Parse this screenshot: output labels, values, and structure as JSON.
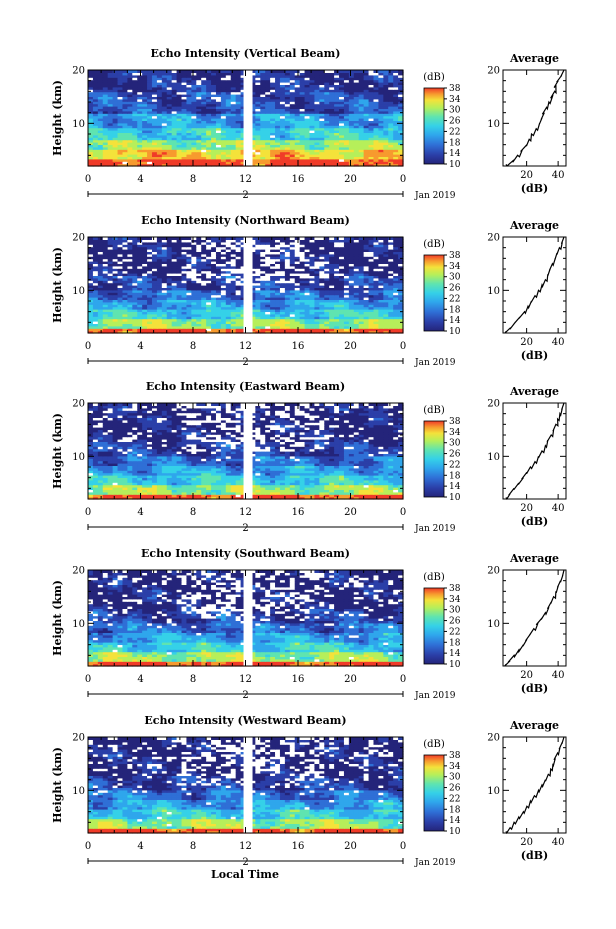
{
  "chart_data": {
    "type": "heatmap",
    "panels": [
      {
        "title": "Echo Intensity (Vertical Beam)",
        "profile": [
          [
            20,
            1.0
          ],
          [
            19,
            0.96
          ],
          [
            18,
            0.9
          ],
          [
            17,
            0.86
          ],
          [
            16,
            0.84
          ],
          [
            15,
            0.8
          ],
          [
            14,
            0.74
          ],
          [
            13,
            0.7
          ],
          [
            12,
            0.66
          ],
          [
            11,
            0.62
          ],
          [
            10,
            0.58
          ],
          [
            9,
            0.52
          ],
          [
            8,
            0.44
          ],
          [
            7,
            0.4
          ],
          [
            6,
            0.36
          ],
          [
            5,
            0.28
          ],
          [
            4,
            0.2
          ],
          [
            3,
            0.12
          ],
          [
            2.3,
            0.0
          ]
        ]
      },
      {
        "title": "Echo Intensity (Northward Beam)",
        "profile": [
          [
            20,
            1.0
          ],
          [
            19,
            0.97
          ],
          [
            18,
            0.92
          ],
          [
            17,
            0.88
          ],
          [
            16,
            0.85
          ],
          [
            15,
            0.8
          ],
          [
            14,
            0.76
          ],
          [
            13,
            0.72
          ],
          [
            12,
            0.68
          ],
          [
            11,
            0.62
          ],
          [
            10,
            0.56
          ],
          [
            9,
            0.5
          ],
          [
            8,
            0.44
          ],
          [
            7,
            0.38
          ],
          [
            6,
            0.32
          ],
          [
            5,
            0.24
          ],
          [
            4,
            0.16
          ],
          [
            3,
            0.08
          ],
          [
            2.3,
            0.0
          ]
        ]
      },
      {
        "title": "Echo Intensity (Eastward Beam)",
        "profile": [
          [
            20,
            1.0
          ],
          [
            19,
            0.97
          ],
          [
            18,
            0.93
          ],
          [
            17,
            0.89
          ],
          [
            16,
            0.86
          ],
          [
            15,
            0.82
          ],
          [
            14,
            0.78
          ],
          [
            13,
            0.72
          ],
          [
            12,
            0.68
          ],
          [
            11,
            0.62
          ],
          [
            10,
            0.56
          ],
          [
            9,
            0.5
          ],
          [
            8,
            0.42
          ],
          [
            7,
            0.36
          ],
          [
            6,
            0.3
          ],
          [
            5,
            0.22
          ],
          [
            4,
            0.14
          ],
          [
            3,
            0.07
          ],
          [
            2.3,
            0.0
          ]
        ]
      },
      {
        "title": "Echo Intensity (Southward Beam)",
        "profile": [
          [
            20,
            1.0
          ],
          [
            19,
            0.98
          ],
          [
            18,
            0.94
          ],
          [
            17,
            0.9
          ],
          [
            16,
            0.86
          ],
          [
            15,
            0.82
          ],
          [
            14,
            0.78
          ],
          [
            13,
            0.74
          ],
          [
            12,
            0.68
          ],
          [
            11,
            0.62
          ],
          [
            10,
            0.55
          ],
          [
            9,
            0.48
          ],
          [
            8,
            0.42
          ],
          [
            7,
            0.36
          ],
          [
            6,
            0.3
          ],
          [
            5,
            0.22
          ],
          [
            4,
            0.14
          ],
          [
            3,
            0.07
          ],
          [
            2.3,
            0.0
          ]
        ]
      },
      {
        "title": "Echo Intensity (Westward Beam)",
        "profile": [
          [
            20,
            1.0
          ],
          [
            19,
            0.97
          ],
          [
            18,
            0.93
          ],
          [
            17,
            0.89
          ],
          [
            16,
            0.85
          ],
          [
            15,
            0.81
          ],
          [
            14,
            0.77
          ],
          [
            13,
            0.73
          ],
          [
            12,
            0.68
          ],
          [
            11,
            0.62
          ],
          [
            10,
            0.56
          ],
          [
            9,
            0.49
          ],
          [
            8,
            0.42
          ],
          [
            7,
            0.36
          ],
          [
            6,
            0.3
          ],
          [
            5,
            0.22
          ],
          [
            4,
            0.14
          ],
          [
            3,
            0.07
          ],
          [
            2.3,
            0.0
          ]
        ]
      }
    ],
    "ylabel": "Height (km)",
    "xlabel": "Local Time",
    "xticks": [
      "0",
      "4",
      "8",
      "12",
      "16",
      "20",
      "0"
    ],
    "yticks": [
      "20",
      "10"
    ],
    "date_tick": "2",
    "date_label": "Jan 2019",
    "colorbar_unit": "(dB)",
    "colorbar_ticks": [
      "38",
      "34",
      "30",
      "26",
      "22",
      "18",
      "14",
      "10"
    ],
    "profile_title": "Average",
    "profile_xlabel": "(dB)",
    "profile_xticks": [
      "20",
      "40"
    ],
    "profile_yticks": [
      "20",
      "10"
    ],
    "xlim": [
      0,
      24
    ],
    "ylim": [
      2,
      20
    ],
    "clim": [
      10,
      38
    ],
    "profile_xlim": [
      5,
      45
    ],
    "colormap": [
      "#24247a",
      "#2b3fa8",
      "#2f6fd6",
      "#2fa6ec",
      "#35d1e8",
      "#5fe4b0",
      "#b6ef5a",
      "#f4e23a",
      "#f79a2e",
      "#f03b28"
    ]
  }
}
